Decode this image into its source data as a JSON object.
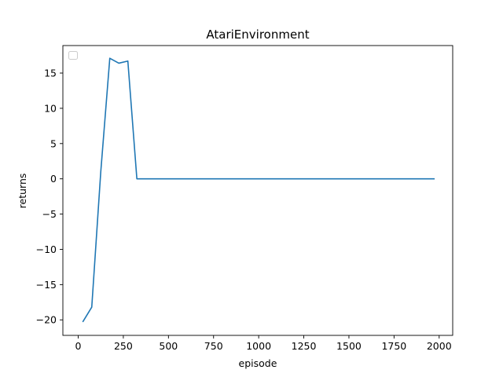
{
  "chart_data": {
    "type": "line",
    "title": "AtariEnvironment",
    "xlabel": "episode",
    "ylabel": "returns",
    "xlim": [
      -85,
      2075
    ],
    "ylim": [
      -22.2,
      18.9
    ],
    "xticks": [
      0,
      250,
      500,
      750,
      1000,
      1250,
      1500,
      1750,
      2000
    ],
    "yticks": [
      -20,
      -15,
      -10,
      -5,
      0,
      5,
      10,
      15
    ],
    "grid": false,
    "legend": "upper-left (empty)",
    "colors": {
      "line": "#1f77b4",
      "axes": "#000000",
      "background": "#ffffff"
    },
    "series": [
      {
        "x": [
          25,
          75,
          125,
          175,
          225,
          275,
          325,
          375,
          425,
          475,
          525,
          575,
          625,
          675,
          725,
          775,
          825,
          875,
          925,
          975,
          1025,
          1075,
          1125,
          1175,
          1225,
          1275,
          1325,
          1375,
          1425,
          1475,
          1525,
          1575,
          1625,
          1675,
          1725,
          1775,
          1825,
          1875,
          1925,
          1975
        ],
        "values": [
          -20.3,
          -18.2,
          1.0,
          17.1,
          16.4,
          16.7,
          0,
          0,
          0,
          0,
          0,
          0,
          0,
          0,
          0,
          0,
          0,
          0,
          0,
          0,
          0,
          0,
          0,
          0,
          0,
          0,
          0,
          0,
          0,
          0,
          0,
          0,
          0,
          0,
          0,
          0,
          0,
          0,
          0,
          0
        ]
      }
    ]
  }
}
